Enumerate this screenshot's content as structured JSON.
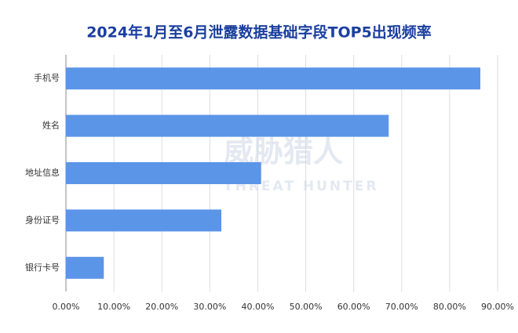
{
  "chart_data": {
    "type": "barh",
    "title": "2024年1月至6月泄露数据基础字段TOP5出现频率",
    "categories": [
      "手机号",
      "姓名",
      "地址信息",
      "身份证号",
      "银行卡号"
    ],
    "values": [
      86.4,
      67.3,
      40.7,
      32.4,
      7.9
    ],
    "color": "#5b95e8",
    "xlim": [
      0,
      90
    ],
    "xticks": [
      {
        "value": 0,
        "label": "0.00%"
      },
      {
        "value": 10,
        "label": "10.00%"
      },
      {
        "value": 20,
        "label": "20.00%"
      },
      {
        "value": 30,
        "label": "30.00%"
      },
      {
        "value": 40,
        "label": "40.00%"
      },
      {
        "value": 50,
        "label": "50.00%"
      },
      {
        "value": 60,
        "label": "60.00%"
      },
      {
        "value": 70,
        "label": "70.00%"
      },
      {
        "value": 80,
        "label": "80.00%"
      },
      {
        "value": 90,
        "label": "90.00%"
      }
    ],
    "grid": true,
    "watermark": {
      "name": "威胁猎人",
      "english": "THREAT HUNTER"
    }
  }
}
